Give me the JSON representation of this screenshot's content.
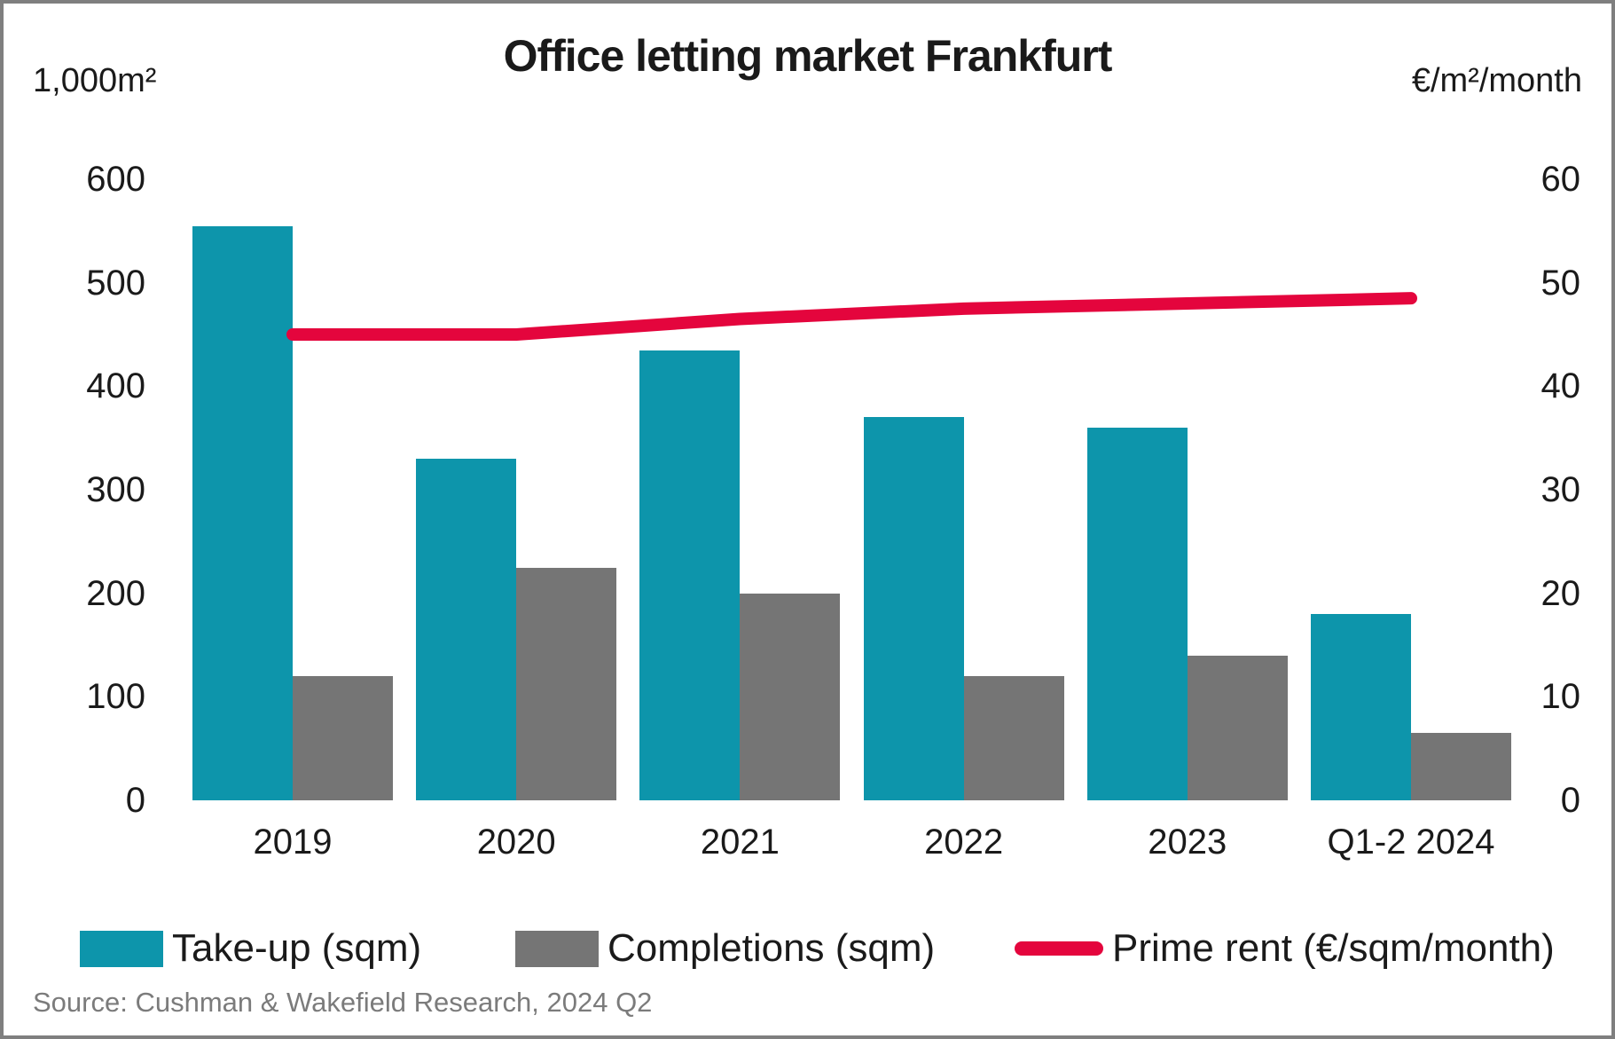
{
  "title": "Office letting market Frankfurt",
  "left_axis": {
    "unit": "1,000m²",
    "ticks": [
      600,
      500,
      400,
      300,
      200,
      100,
      0
    ]
  },
  "right_axis": {
    "unit": "€/m²/month",
    "ticks": [
      60,
      50,
      40,
      30,
      20,
      10,
      0
    ]
  },
  "chart_data": {
    "type": "bar+line",
    "categories": [
      "2019",
      "2020",
      "2021",
      "2022",
      "2023",
      "Q1-2 2024"
    ],
    "series": [
      {
        "name": "Take-up (sqm)",
        "type": "bar",
        "axis": "left",
        "color": "#0D95AB",
        "values": [
          555,
          330,
          435,
          370,
          360,
          180
        ]
      },
      {
        "name": "Completions (sqm)",
        "type": "bar",
        "axis": "left",
        "color": "#757575",
        "values": [
          120,
          225,
          200,
          120,
          140,
          65
        ]
      },
      {
        "name": "Prime rent (€/sqm/month)",
        "type": "line",
        "axis": "right",
        "color": "#E4053D",
        "values": [
          45,
          45,
          46.5,
          47.5,
          48,
          48.5
        ]
      }
    ],
    "ylim_left": [
      0,
      600
    ],
    "ylim_right": [
      0,
      60
    ],
    "grid": false,
    "legend_position": "bottom"
  },
  "source": "Source: Cushman & Wakefield Research, 2024 Q2"
}
